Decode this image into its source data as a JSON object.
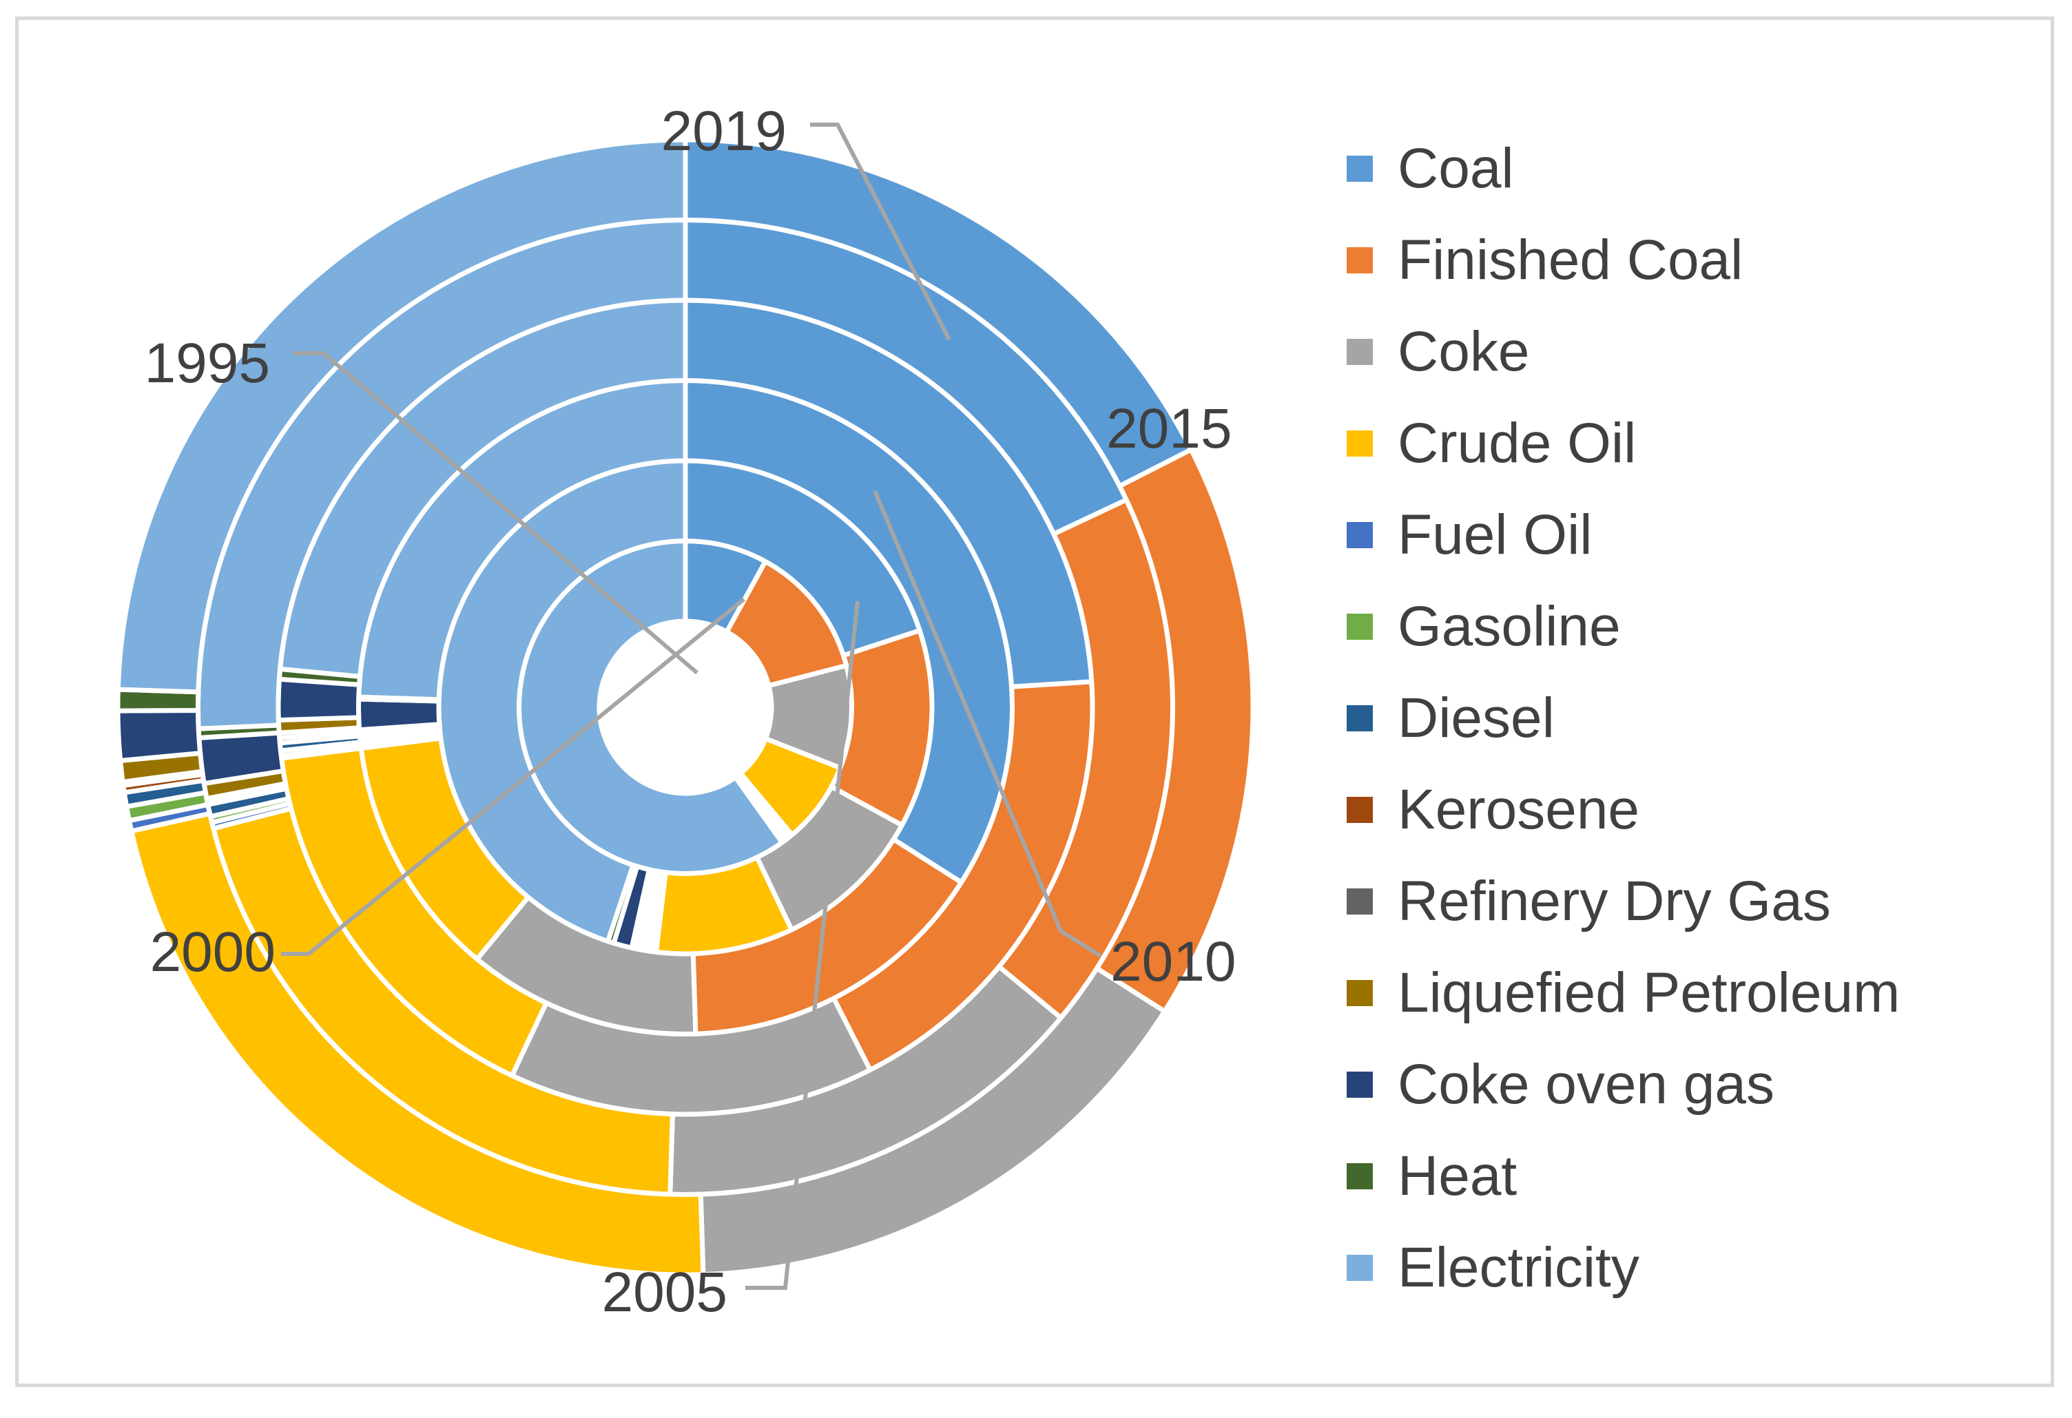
{
  "chart_data": {
    "type": "doughnut",
    "title": "",
    "series_labels": [
      "1995",
      "2000",
      "2005",
      "2010",
      "2015",
      "2019"
    ],
    "categories": [
      "Coal",
      "Finished Coal",
      "Coke",
      "Crude Oil",
      "Fuel Oil",
      "Gasoline",
      "Diesel",
      "Kerosene",
      "Refinery Dry Gas",
      "Liquefied Petroleum",
      "Coke oven gas",
      "Heat",
      "Electricity"
    ],
    "colors": [
      "#5b9bd5",
      "#ed7d31",
      "#a5a5a5",
      "#ffc000",
      "#4472c4",
      "#70ad47",
      "#255e91",
      "#9e480e",
      "#636363",
      "#997300",
      "#264478",
      "#43682b",
      "#7cafdd"
    ],
    "series": [
      {
        "name": "1995",
        "values": [
          8,
          13,
          10,
          8,
          0.2,
          0.2,
          0.2,
          0.1,
          0.1,
          0.1,
          0.2,
          0.1,
          60
        ]
      },
      {
        "name": "2000",
        "values": [
          20,
          13,
          10,
          9,
          0.3,
          0.3,
          0.3,
          0.2,
          0.2,
          0.3,
          1.2,
          0.4,
          45
        ]
      },
      {
        "name": "2005",
        "values": [
          34,
          15.5,
          11.5,
          12,
          0.1,
          0.2,
          0.2,
          0.1,
          0.1,
          0.2,
          1.5,
          0.1,
          24.5
        ]
      },
      {
        "name": "2010",
        "values": [
          24,
          18.5,
          14.5,
          16,
          0.1,
          0.2,
          0.3,
          0.2,
          0.2,
          0.5,
          1.6,
          0.4,
          23.5
        ]
      },
      {
        "name": "2015",
        "values": [
          18,
          18,
          14.5,
          20.5,
          0.2,
          0.2,
          0.4,
          0.1,
          0.1,
          0.5,
          1.5,
          0.3,
          25.7
        ]
      },
      {
        "name": "2019",
        "values": [
          17.5,
          16.5,
          15.5,
          22,
          0.3,
          0.4,
          0.4,
          0.2,
          0.1,
          0.6,
          1.4,
          0.6,
          24.5
        ]
      }
    ],
    "legend_position": "right"
  }
}
